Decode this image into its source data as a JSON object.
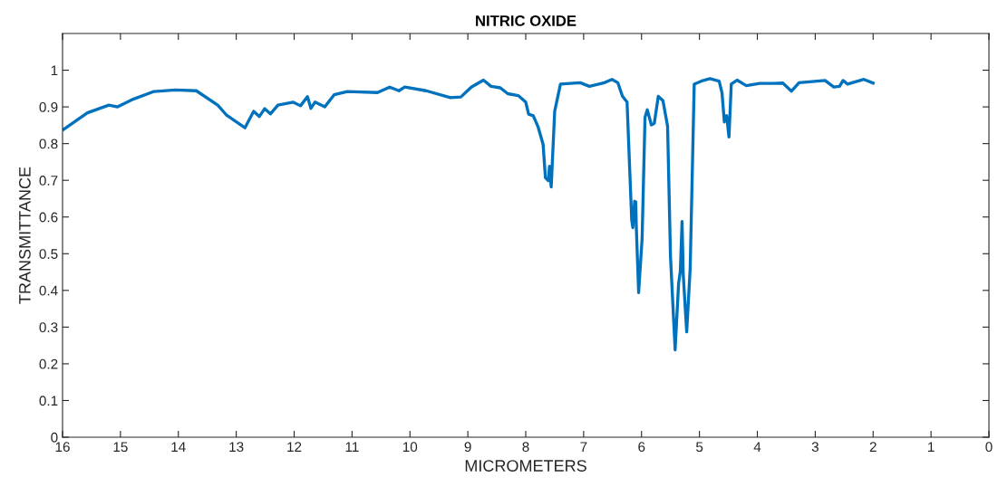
{
  "chart_data": {
    "type": "line",
    "title": "NITRIC OXIDE",
    "xlabel": "MICROMETERS",
    "ylabel": "TRANSMITTANCE",
    "xlim": [
      16,
      0
    ],
    "xticks": [
      16,
      15,
      14,
      13,
      12,
      11,
      10,
      9,
      8,
      7,
      6,
      5,
      4,
      3,
      2,
      1,
      0
    ],
    "ylim": [
      0,
      1.1
    ],
    "yticks": [
      0,
      0.1,
      0.2,
      0.3,
      0.4,
      0.5,
      0.6,
      0.7,
      0.8,
      0.9,
      1
    ],
    "grid": false,
    "legend": false,
    "marker": "none",
    "line_style": "solid",
    "series": [
      {
        "color": "#0072bd",
        "x": [
          15.98,
          15.57,
          15.2,
          15.05,
          14.78,
          14.42,
          14.05,
          13.69,
          13.32,
          13.17,
          12.85,
          12.7,
          12.6,
          12.51,
          12.41,
          12.28,
          12.02,
          11.89,
          11.77,
          11.71,
          11.64,
          11.47,
          11.31,
          11.08,
          10.56,
          10.35,
          10.19,
          10.09,
          9.72,
          9.3,
          9.12,
          8.94,
          8.73,
          8.6,
          8.44,
          8.31,
          8.13,
          8.0,
          7.95,
          7.87,
          7.79,
          7.7,
          7.66,
          7.61,
          7.59,
          7.56,
          7.5,
          7.4,
          7.06,
          6.9,
          6.64,
          6.51,
          6.41,
          6.33,
          6.25,
          6.17,
          6.15,
          6.12,
          6.1,
          6.09,
          6.05,
          5.99,
          5.94,
          5.9,
          5.83,
          5.78,
          5.71,
          5.63,
          5.55,
          5.5,
          5.42,
          5.36,
          5.33,
          5.3,
          5.28,
          5.22,
          5.16,
          5.09,
          4.97,
          4.82,
          4.66,
          4.61,
          4.57,
          4.53,
          4.49,
          4.45,
          4.35,
          4.19,
          3.96,
          3.72,
          3.56,
          3.41,
          3.28,
          2.83,
          2.68,
          2.58,
          2.52,
          2.44,
          2.16,
          2.0
        ],
        "values": [
          0.839,
          0.884,
          0.905,
          0.9,
          0.921,
          0.942,
          0.946,
          0.944,
          0.905,
          0.878,
          0.843,
          0.888,
          0.874,
          0.895,
          0.881,
          0.905,
          0.913,
          0.903,
          0.928,
          0.896,
          0.913,
          0.9,
          0.933,
          0.942,
          0.939,
          0.954,
          0.944,
          0.954,
          0.944,
          0.925,
          0.927,
          0.954,
          0.973,
          0.956,
          0.952,
          0.936,
          0.931,
          0.913,
          0.88,
          0.876,
          0.847,
          0.798,
          0.707,
          0.699,
          0.738,
          0.682,
          0.888,
          0.962,
          0.966,
          0.956,
          0.966,
          0.975,
          0.966,
          0.929,
          0.913,
          0.592,
          0.571,
          0.643,
          0.641,
          0.571,
          0.394,
          0.542,
          0.872,
          0.892,
          0.851,
          0.855,
          0.929,
          0.917,
          0.847,
          0.493,
          0.238,
          0.419,
          0.452,
          0.588,
          0.444,
          0.287,
          0.46,
          0.962,
          0.97,
          0.977,
          0.97,
          0.938,
          0.859,
          0.876,
          0.818,
          0.962,
          0.973,
          0.958,
          0.964,
          0.964,
          0.965,
          0.943,
          0.966,
          0.972,
          0.954,
          0.956,
          0.972,
          0.962,
          0.975,
          0.965
        ]
      }
    ]
  }
}
